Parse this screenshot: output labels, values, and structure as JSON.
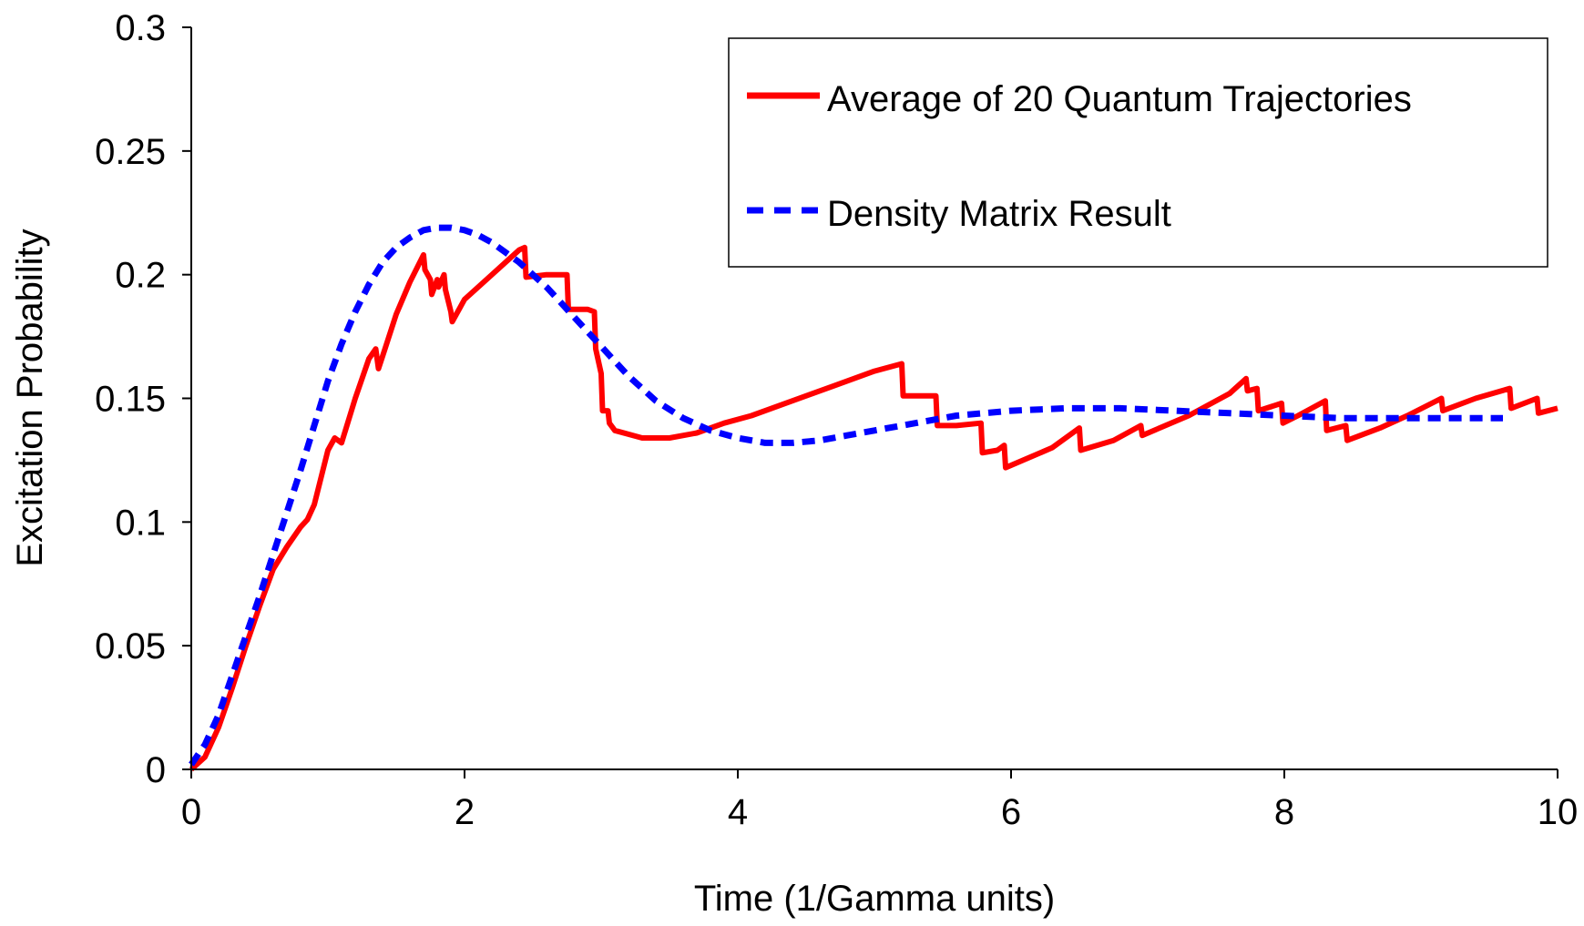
{
  "chart_data": {
    "type": "line",
    "title": "",
    "xlabel": "Time (1/Gamma units)",
    "ylabel": "Excitation Probability",
    "xlim": [
      0,
      10
    ],
    "ylim": [
      0,
      0.3
    ],
    "x_ticks": [
      0,
      2,
      4,
      6,
      8,
      10
    ],
    "y_ticks": [
      0,
      0.05,
      0.1,
      0.15,
      0.2,
      0.25,
      0.3
    ],
    "x_tick_labels": [
      "0",
      "2",
      "4",
      "6",
      "8",
      "10"
    ],
    "y_tick_labels": [
      "0",
      "0.05",
      "0.1",
      "0.15",
      "0.2",
      "0.25",
      "0.3"
    ],
    "grid": false,
    "legend_position": "top-right",
    "series": [
      {
        "name": "Average of 20 Quantum Trajectories",
        "color": "#ff0000",
        "style": "solid",
        "x": [
          0.0,
          0.1,
          0.2,
          0.3,
          0.4,
          0.5,
          0.6,
          0.7,
          0.8,
          0.85,
          0.9,
          1.0,
          1.05,
          1.1,
          1.2,
          1.3,
          1.35,
          1.37,
          1.4,
          1.5,
          1.6,
          1.7,
          1.71,
          1.75,
          1.76,
          1.8,
          1.81,
          1.85,
          1.86,
          1.9,
          1.91,
          2.0,
          2.2,
          2.4,
          2.44,
          2.45,
          2.6,
          2.75,
          2.76,
          2.8,
          2.9,
          2.95,
          2.96,
          3.0,
          3.01,
          3.05,
          3.06,
          3.1,
          3.3,
          3.5,
          3.7,
          3.9,
          4.1,
          4.4,
          4.7,
          5.0,
          5.2,
          5.21,
          5.45,
          5.46,
          5.6,
          5.78,
          5.79,
          5.9,
          5.95,
          5.96,
          6.3,
          6.5,
          6.51,
          6.75,
          6.95,
          6.96,
          7.3,
          7.6,
          7.72,
          7.73,
          7.8,
          7.81,
          7.98,
          7.99,
          8.1,
          8.3,
          8.31,
          8.45,
          8.46,
          8.7,
          8.9,
          9.15,
          9.16,
          9.4,
          9.65,
          9.66,
          9.85,
          9.86,
          10.0
        ],
        "values": [
          0.0,
          0.005,
          0.017,
          0.033,
          0.05,
          0.066,
          0.081,
          0.09,
          0.098,
          0.101,
          0.107,
          0.129,
          0.134,
          0.132,
          0.15,
          0.166,
          0.17,
          0.162,
          0.167,
          0.184,
          0.197,
          0.208,
          0.202,
          0.198,
          0.192,
          0.198,
          0.195,
          0.2,
          0.194,
          0.185,
          0.181,
          0.19,
          0.2,
          0.21,
          0.211,
          0.199,
          0.2,
          0.2,
          0.186,
          0.186,
          0.186,
          0.185,
          0.17,
          0.16,
          0.145,
          0.145,
          0.14,
          0.137,
          0.134,
          0.134,
          0.136,
          0.14,
          0.143,
          0.149,
          0.155,
          0.161,
          0.164,
          0.151,
          0.151,
          0.139,
          0.139,
          0.14,
          0.128,
          0.129,
          0.131,
          0.122,
          0.13,
          0.138,
          0.129,
          0.133,
          0.139,
          0.135,
          0.143,
          0.152,
          0.158,
          0.153,
          0.154,
          0.145,
          0.148,
          0.14,
          0.143,
          0.149,
          0.137,
          0.139,
          0.133,
          0.138,
          0.143,
          0.15,
          0.145,
          0.15,
          0.154,
          0.146,
          0.15,
          0.144,
          0.146
        ]
      },
      {
        "name": "Density Matrix Result",
        "color": "#0000ff",
        "style": "dashed",
        "x": [
          0.0,
          0.1,
          0.2,
          0.3,
          0.4,
          0.5,
          0.6,
          0.7,
          0.8,
          0.9,
          1.0,
          1.1,
          1.2,
          1.3,
          1.4,
          1.5,
          1.6,
          1.7,
          1.8,
          1.9,
          2.0,
          2.1,
          2.2,
          2.3,
          2.4,
          2.5,
          2.6,
          2.7,
          2.8,
          2.9,
          3.0,
          3.2,
          3.4,
          3.6,
          3.8,
          4.0,
          4.2,
          4.4,
          4.6,
          4.8,
          5.0,
          5.3,
          5.6,
          6.0,
          6.4,
          6.8,
          7.2,
          7.6,
          8.0,
          8.4,
          8.8,
          9.2,
          9.6
        ],
        "values": [
          0.002,
          0.01,
          0.022,
          0.038,
          0.054,
          0.07,
          0.087,
          0.104,
          0.121,
          0.139,
          0.157,
          0.172,
          0.185,
          0.196,
          0.205,
          0.211,
          0.215,
          0.218,
          0.219,
          0.219,
          0.218,
          0.216,
          0.213,
          0.209,
          0.205,
          0.2,
          0.195,
          0.189,
          0.183,
          0.177,
          0.171,
          0.159,
          0.149,
          0.142,
          0.137,
          0.134,
          0.132,
          0.132,
          0.133,
          0.135,
          0.137,
          0.14,
          0.143,
          0.145,
          0.146,
          0.146,
          0.145,
          0.144,
          0.143,
          0.142,
          0.142,
          0.142,
          0.142
        ]
      }
    ]
  }
}
